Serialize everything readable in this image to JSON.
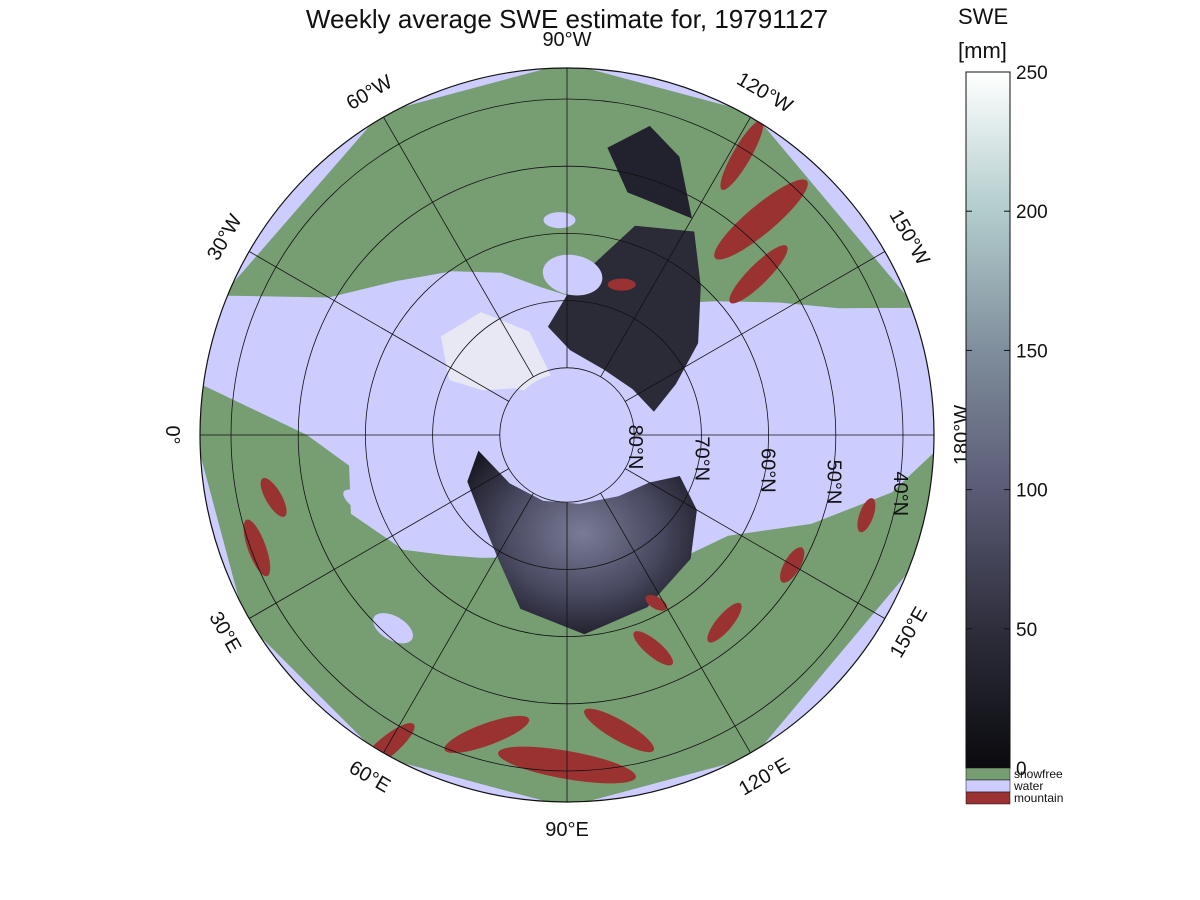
{
  "title": "Weekly average SWE estimate for, 19791127",
  "colorbar": {
    "title": "SWE",
    "unit": "[mm]",
    "ticks": [
      "0",
      "50",
      "100",
      "150",
      "200",
      "250"
    ],
    "categories": [
      {
        "label": "snowfree",
        "color": "#779e72"
      },
      {
        "label": "water",
        "color": "#ccccff"
      },
      {
        "label": "mountain",
        "color": "#9b3232"
      }
    ]
  },
  "map": {
    "projection": "north-polar-stereographic",
    "colors": {
      "water": "#ccccff",
      "snowfree": "#779e72",
      "mountain": "#9b3232",
      "swe_low": "#0d0d12",
      "swe_mid": "#50506c",
      "swe_high": "#ffffff"
    },
    "longitude_labels": [
      {
        "id": "lon-0",
        "text": "0°",
        "angle_deg": 0
      },
      {
        "id": "lon-30e",
        "text": "30°E",
        "angle_deg": 30
      },
      {
        "id": "lon-60e",
        "text": "60°E",
        "angle_deg": 60
      },
      {
        "id": "lon-90e",
        "text": "90°E",
        "angle_deg": 90
      },
      {
        "id": "lon-120e",
        "text": "120°E",
        "angle_deg": 120
      },
      {
        "id": "lon-150e",
        "text": "150°E",
        "angle_deg": 150
      },
      {
        "id": "lon-180w",
        "text": "180°W",
        "angle_deg": 180
      },
      {
        "id": "lon-150w",
        "text": "150°W",
        "angle_deg": 210
      },
      {
        "id": "lon-120w",
        "text": "120°W",
        "angle_deg": 240
      },
      {
        "id": "lon-90w",
        "text": "90°W",
        "angle_deg": 270
      },
      {
        "id": "lon-60w",
        "text": "60°W",
        "angle_deg": 300
      },
      {
        "id": "lon-30w",
        "text": "30°W",
        "angle_deg": 330
      }
    ],
    "latitude_labels": [
      {
        "id": "lat-80n",
        "text": "80°N",
        "lat": 80
      },
      {
        "id": "lat-70n",
        "text": "70°N",
        "lat": 70
      },
      {
        "id": "lat-60n",
        "text": "60°N",
        "lat": 60
      },
      {
        "id": "lat-50n",
        "text": "50°N",
        "lat": 50
      },
      {
        "id": "lat-40n",
        "text": "40°N",
        "lat": 40
      }
    ]
  }
}
